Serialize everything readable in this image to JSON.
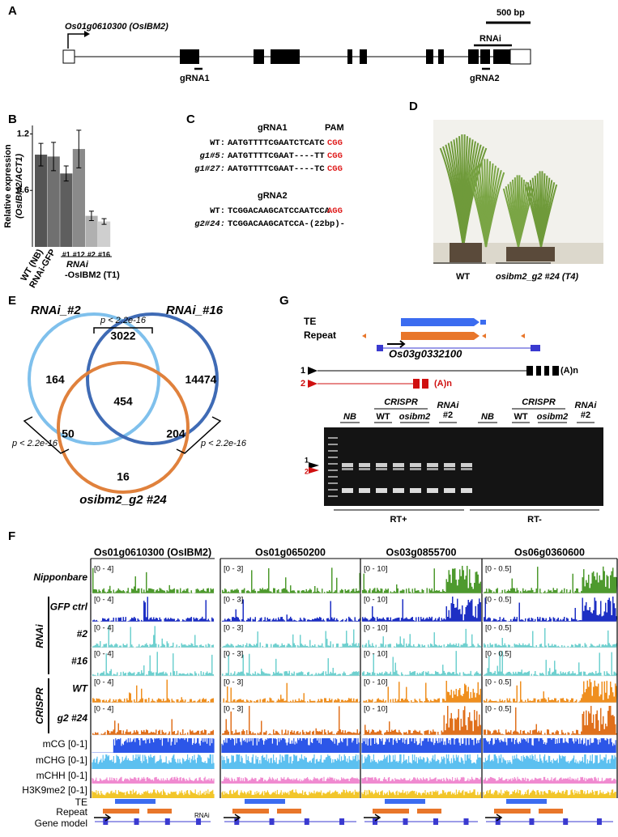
{
  "panel_a": {
    "label": "A",
    "gene": "Os01g0610300 (OsIBM2)",
    "scale": "500 bp",
    "rnai": "RNAi",
    "grna1": "gRNA1",
    "grna2": "gRNA2"
  },
  "panel_b": {
    "label": "B",
    "chart_data": {
      "type": "bar",
      "y_label": [
        "Relative expression",
        "(OsIBM2/ACT1)"
      ],
      "categories": [
        "WT (NB)",
        "RNAi-GFP",
        "#1",
        "#12",
        "#2",
        "#16"
      ],
      "values": [
        0.98,
        0.96,
        0.78,
        1.04,
        0.33,
        0.27
      ],
      "errors": [
        0.12,
        0.15,
        0.08,
        0.2,
        0.05,
        0.03
      ],
      "colors": [
        "#555555",
        "#707070",
        "#5e5e5e",
        "#8a8a8a",
        "#b0b0b0",
        "#cfcfcf"
      ],
      "ylim": [
        0,
        1.29
      ],
      "yticks": [
        0.6,
        1.2
      ],
      "group_label": [
        "RNAi",
        "-OsIBM2 (T1)"
      ]
    }
  },
  "panel_c": {
    "label": "C",
    "groups": [
      {
        "title": "gRNA1",
        "pam_title": "PAM",
        "rows": [
          {
            "name": "WT:",
            "seq": "AATGTTTTCGAATCTCATC",
            "pam": "CGG"
          },
          {
            "name": "g1#5:",
            "seq": "AATGTTTTCGAAT----TT",
            "pam": "CGG"
          },
          {
            "name": "g1#27:",
            "seq": "AATGTTTTCGAAT----TC",
            "pam": "CGG"
          }
        ]
      },
      {
        "title": "gRNA2",
        "rows": [
          {
            "name": "WT:",
            "seq": "TCGGACAAGCATCCAATCCA",
            "pam": "AGG"
          },
          {
            "name": "g2#24:",
            "seq": "TCGGACAAGCATCCA-(22bp)-"
          }
        ]
      }
    ]
  },
  "panel_d": {
    "label": "D",
    "wt": "WT",
    "mutant": "osibm2_g2 #24 (T4)"
  },
  "panel_e": {
    "label": "E",
    "sets": [
      "RNAi_#2",
      "RNAi_#16",
      "osibm2_g2 #24"
    ],
    "counts": {
      "only_2": "164",
      "r2_r16": "3022",
      "only_16": "14474",
      "all": "454",
      "r2_mut": "50",
      "r16_mut": "204",
      "only_mut": "16"
    },
    "p_values": [
      "p < 2.2e-16",
      "p < 2.2e-16",
      "p < 2.2e-16"
    ]
  },
  "panel_g": {
    "label": "G",
    "te": "TE",
    "repeat": "Repeat",
    "gene": "Os03g0332100",
    "isoforms": [
      "1",
      "2"
    ],
    "polya": "(A)n",
    "gel_headers": [
      {
        "nb": "NB",
        "crispr": "CRISPR",
        "wt": "WT",
        "mut": "osibm2",
        "rnai": "RNAi",
        "rnai_n": "#2"
      },
      {
        "nb": "NB",
        "crispr": "CRISPR",
        "wt": "WT",
        "mut": "osibm2",
        "rnai": "RNAi",
        "rnai_n": "#2"
      }
    ],
    "rt": [
      "RT+",
      "RT-"
    ]
  },
  "panel_f": {
    "label": "F",
    "columns": [
      {
        "title": "Os01g0610300 (OsIBM2)",
        "range": [
          "[0 - 4]",
          "[0 - 4]",
          "[0 - 4]",
          "[0 - 4]",
          "[0 - 4]",
          "[0 - 4]"
        ]
      },
      {
        "title": "Os01g0650200",
        "range": [
          "[0 - 3]",
          "[0 - 3]",
          "[0 - 3]",
          "[0 - 3]",
          "[0 - 3]",
          "[0 - 3]"
        ]
      },
      {
        "title": "Os03g0855700",
        "range": [
          "[0 - 10]",
          "[0 - 10]",
          "[0 - 10]",
          "[0 - 10]",
          "[0 - 10]",
          "[0 - 10]"
        ]
      },
      {
        "title": "Os06g0360600",
        "range": [
          "[0 - 0.5]",
          "[0 - 0.5]",
          "[0 - 0.5]",
          "[0 - 0.5]",
          "[0 - 0.5]",
          "[0 - 0.5]"
        ]
      }
    ],
    "tracks": [
      "Nipponbare",
      "GFP ctrl",
      "#2",
      "#16",
      "WT",
      "g2 #24"
    ],
    "groups": [
      "RNAi",
      "CRISPR"
    ],
    "track_colors": [
      "#4e9a2e",
      "#1d2fc4",
      "#6fd0cf",
      "#6fd0cf",
      "#ef8f1f",
      "#e0701c"
    ],
    "marks": [
      "mCG [0-1]",
      "mCHG [0-1]",
      "mCHH [0-1]",
      "H3K9me2 [0-1]"
    ],
    "mark_colors": [
      "#2c56e8",
      "#5cc0f0",
      "#f08ad0",
      "#f2c62a"
    ],
    "annot": [
      "TE",
      "Repeat",
      "Gene model"
    ],
    "rnai": "RNAi"
  }
}
